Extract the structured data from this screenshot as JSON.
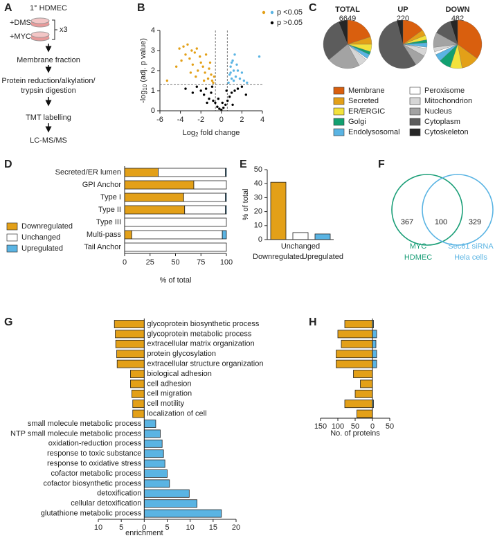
{
  "panel_labels": [
    "A",
    "B",
    "C",
    "D",
    "E",
    "F",
    "G",
    "H"
  ],
  "workflow": {
    "steps": [
      "1° HDMEC",
      "+DMSO",
      "+MYC",
      "x3",
      "Membrane fraction",
      "Protein reduction/alkylation/",
      "trypsin digestion",
      "TMT labelling",
      "LC-MS/MS"
    ]
  },
  "chart_data": [
    {
      "type": "scatter",
      "xlabel": {
        "text": "Log",
        "sub": "2",
        "rest": " fold change"
      },
      "ylabel": {
        "text": "-log",
        "sub": "10",
        "rest": " (adj. p value)"
      },
      "xlim": [
        -6,
        4
      ],
      "xticks": [
        -6,
        -4,
        -2,
        0,
        2,
        4
      ],
      "ylim": [
        0,
        4
      ],
      "yticks": [
        0,
        1,
        2,
        3,
        4
      ],
      "hline": 1.3,
      "vlines": [
        -0.58,
        0.58
      ],
      "legend": [
        {
          "label": "p <0.05",
          "colors": [
            "#e3a018",
            "#5ab4e3"
          ]
        },
        {
          "label": "p >0.05",
          "colors": [
            "#000000"
          ]
        }
      ],
      "series": [
        {
          "color": "#e3a018",
          "x": [
            -4.4,
            -4.1,
            -3.9,
            -3.7,
            -3.5,
            -3.3,
            -3.1,
            -2.9,
            -2.8,
            -2.6,
            -2.4,
            -2.3,
            -2.1,
            -2.0,
            -1.8,
            -1.6,
            -1.5,
            -1.3,
            -1.2,
            -1.0,
            -0.9,
            -0.8,
            -2.5,
            -3.0,
            -1.7,
            -5.3,
            -1.1,
            -0.7
          ],
          "values": [
            2.2,
            3.1,
            2.5,
            3.2,
            2.8,
            3.3,
            2.6,
            3.0,
            2.3,
            2.9,
            3.1,
            2.0,
            2.7,
            2.4,
            2.2,
            1.9,
            2.8,
            1.6,
            2.1,
            1.8,
            1.5,
            1.4,
            1.7,
            1.9,
            1.5,
            1.5,
            2.4,
            1.7
          ]
        },
        {
          "color": "#5ab4e3",
          "x": [
            0.7,
            0.8,
            0.9,
            1.0,
            1.1,
            1.2,
            1.3,
            1.4,
            1.5,
            1.6,
            1.8,
            2.0,
            2.2,
            2.5,
            3.7,
            1.0,
            1.2,
            0.9
          ],
          "values": [
            1.4,
            1.8,
            2.2,
            1.6,
            2.5,
            2.0,
            2.8,
            1.7,
            2.3,
            2.0,
            1.6,
            1.9,
            1.5,
            1.4,
            2.7,
            2.4,
            1.5,
            1.9
          ]
        },
        {
          "color": "#000000",
          "x": [
            -3.5,
            -2.8,
            -2.4,
            -2.0,
            -1.7,
            -1.5,
            -1.2,
            -1.0,
            -0.8,
            -0.6,
            -0.4,
            -0.2,
            0,
            0.2,
            0.4,
            0.6,
            0.8,
            1.0,
            1.3,
            1.6,
            2.0,
            2.4,
            -0.3,
            0.1,
            0.5,
            -0.9,
            1.1,
            -1.4
          ],
          "values": [
            1.1,
            0.9,
            1.2,
            1.0,
            0.8,
            1.1,
            0.6,
            0.9,
            0.5,
            0.4,
            0.2,
            0.1,
            0.05,
            0.15,
            0.3,
            0.5,
            0.7,
            0.9,
            1.0,
            1.1,
            1.2,
            0.8,
            0.6,
            0.4,
            1.0,
            1.2,
            0.3,
            0.4
          ]
        }
      ]
    },
    {
      "type": "pie",
      "categories": [
        "Membrane",
        "Secreted",
        "ER/ERGIC",
        "Golgi",
        "Endolysosomal",
        "Peroxisome",
        "Mitochondrion",
        "Nucleus",
        "Cytoplasm",
        "Cytoskeleton"
      ],
      "colors": [
        "#d95f0e",
        "#e3a018",
        "#f3e23c",
        "#12a070",
        "#5ab4e3",
        "#ffffff",
        "#d6d6d6",
        "#a3a3a3",
        "#5c5c5c",
        "#262626"
      ],
      "series": [
        {
          "name": "TOTAL",
          "total": 6649,
          "values": [
            20,
            5,
            5,
            2,
            3,
            1,
            6,
            22,
            30,
            6
          ]
        },
        {
          "name": "UP",
          "total": 220,
          "values": [
            15,
            4,
            3,
            2,
            3,
            1,
            5,
            8,
            55,
            4
          ]
        },
        {
          "name": "DOWN",
          "total": 482,
          "values": [
            35,
            12,
            8,
            8,
            5,
            2,
            3,
            10,
            12,
            5
          ]
        }
      ]
    },
    {
      "type": "stacked_barh",
      "categories": [
        "Secreted/ER lumen",
        "GPI Anchor",
        "Type I",
        "Type II",
        "Type III",
        "Multi-pass",
        "Tail Anchor"
      ],
      "series": [
        {
          "name": "Downregulated",
          "color": "#e3a018",
          "values": [
            33,
            68,
            58,
            59,
            0,
            7,
            0
          ]
        },
        {
          "name": "Unchanged",
          "color": "#ffffff",
          "values": [
            66,
            32,
            41,
            40,
            100,
            89,
            100
          ]
        },
        {
          "name": "Upregulated",
          "color": "#5ab4e3",
          "values": [
            1,
            0,
            1,
            1,
            0,
            4,
            0
          ]
        }
      ],
      "xlim": [
        0,
        100
      ],
      "xticks": [
        0,
        25,
        50,
        75,
        100
      ],
      "xlabel": "% of total"
    },
    {
      "type": "bar",
      "categories": [
        "Downregulated",
        "Unchanged",
        "Upregulated"
      ],
      "values": [
        41,
        5,
        4
      ],
      "colors": [
        "#e3a018",
        "#ffffff",
        "#5ab4e3"
      ],
      "ylim": [
        0,
        50
      ],
      "yticks": [
        0,
        10,
        20,
        30,
        40,
        50
      ],
      "ylabel": "% of total"
    },
    {
      "type": "venn",
      "sets": [
        {
          "label": [
            "MYC",
            "HDMEC"
          ],
          "color": "#1a9e77",
          "only": 367
        },
        {
          "label": [
            "Sec61 siRNA",
            "Hela cells"
          ],
          "color": "#5ab4e3",
          "only": 329
        }
      ],
      "overlap": 100
    },
    {
      "type": "diverging_barh",
      "categories": [
        "glycoprotein biosynthetic process",
        "glycoprotein metabolic process",
        "extracellular matrix organization",
        "protein glycosylation",
        "extracellular structure organization",
        "biological adhesion",
        "cell adhesion",
        "cell migration",
        "cell motility",
        "localization of cell",
        "small molecule metabolic process",
        "NTP small molecule metabolic process",
        "oxidation-reduction process",
        "response to toxic substance",
        "response to oxidative stress",
        "cofactor metabolic process",
        "cofactor biosynthetic process",
        "detoxification",
        "cellular detoxification",
        "glutathione metabolic process"
      ],
      "values": [
        -6.5,
        -6.3,
        -6.2,
        -6.0,
        -5.9,
        -3.0,
        -3.0,
        -2.7,
        -2.5,
        -2.5,
        2.5,
        3.5,
        3.9,
        4.2,
        4.5,
        5.0,
        5.5,
        9.8,
        11.5,
        16.8
      ],
      "neg_color": "#e3a018",
      "pos_color": "#5ab4e3",
      "xlim": [
        -10,
        20
      ],
      "xticks": [
        {
          "value": -10,
          "label": "10"
        },
        {
          "value": -5,
          "label": "5"
        },
        0,
        5,
        10,
        15,
        20
      ],
      "xlabel": "enrichment"
    },
    {
      "type": "paired_barh",
      "series": [
        {
          "color": "#e3a018",
          "values": [
            -80,
            -100,
            -90,
            -105,
            -105,
            -55,
            -35,
            -50,
            -80,
            -45
          ]
        },
        {
          "color": "#5ab4e3",
          "values": [
            3,
            12,
            10,
            12,
            12,
            0,
            0,
            0,
            3,
            0
          ]
        }
      ],
      "xlim": [
        -150,
        50
      ],
      "xticks": [
        {
          "value": -150,
          "label": "150"
        },
        {
          "value": -100,
          "label": "100"
        },
        {
          "value": -50,
          "label": "50"
        },
        0,
        50
      ],
      "xlabel": "No. of proteins"
    }
  ]
}
